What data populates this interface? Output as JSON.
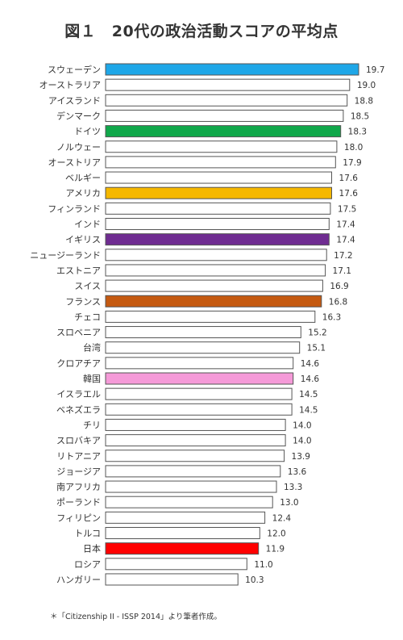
{
  "chart_data": {
    "type": "bar",
    "orientation": "horizontal",
    "title": "図１　20代の政治活動スコアの平均点",
    "categories": [
      "スウェーデン",
      "オーストラリア",
      "アイスランド",
      "デンマーク",
      "ドイツ",
      "ノルウェー",
      "オーストリア",
      "ベルギー",
      "アメリカ",
      "フィンランド",
      "インド",
      "イギリス",
      "ニュージーランド",
      "エストニア",
      "スイス",
      "フランス",
      "チェコ",
      "スロベニア",
      "台湾",
      "クロアチア",
      "韓国",
      "イスラエル",
      "ベネズエラ",
      "チリ",
      "スロバキア",
      "リトアニア",
      "ジョージア",
      "南アフリカ",
      "ポーランド",
      "フィリピン",
      "トルコ",
      "日本",
      "ロシア",
      "ハンガリー"
    ],
    "values": [
      19.7,
      19.0,
      18.8,
      18.5,
      18.3,
      18.0,
      17.9,
      17.6,
      17.6,
      17.5,
      17.4,
      17.4,
      17.2,
      17.1,
      16.9,
      16.8,
      16.3,
      15.2,
      15.1,
      14.6,
      14.6,
      14.5,
      14.5,
      14.0,
      14.0,
      13.9,
      13.6,
      13.3,
      13.0,
      12.4,
      12.0,
      11.9,
      11.0,
      10.3
    ],
    "value_labels": [
      "19.7",
      "19.0",
      "18.8",
      "18.5",
      "18.3",
      "18.0",
      "17.9",
      "17.6",
      "17.6",
      "17.5",
      "17.4",
      "17.4",
      "17.2",
      "17.1",
      "16.9",
      "16.8",
      "16.3",
      "15.2",
      "15.1",
      "14.6",
      "14.6",
      "14.5",
      "14.5",
      "14.0",
      "14.0",
      "13.9",
      "13.6",
      "13.3",
      "13.0",
      "12.4",
      "12.0",
      "11.9",
      "11.0",
      "10.3"
    ],
    "colors": [
      "#1ea7e8",
      "#ffffff",
      "#ffffff",
      "#ffffff",
      "#10a84a",
      "#ffffff",
      "#ffffff",
      "#ffffff",
      "#f5b800",
      "#ffffff",
      "#ffffff",
      "#6f2c91",
      "#ffffff",
      "#ffffff",
      "#ffffff",
      "#c55a11",
      "#ffffff",
      "#ffffff",
      "#ffffff",
      "#ffffff",
      "#f59ad8",
      "#ffffff",
      "#ffffff",
      "#ffffff",
      "#ffffff",
      "#ffffff",
      "#ffffff",
      "#ffffff",
      "#ffffff",
      "#ffffff",
      "#ffffff",
      "#ff0000",
      "#ffffff",
      "#ffffff"
    ],
    "xlim": [
      0,
      19.7
    ],
    "grid": false,
    "legend": "none"
  },
  "footnote": "＊「Citizenship II - ISSP 2014」より筆者作成。",
  "bar_outline_color": "#555555"
}
